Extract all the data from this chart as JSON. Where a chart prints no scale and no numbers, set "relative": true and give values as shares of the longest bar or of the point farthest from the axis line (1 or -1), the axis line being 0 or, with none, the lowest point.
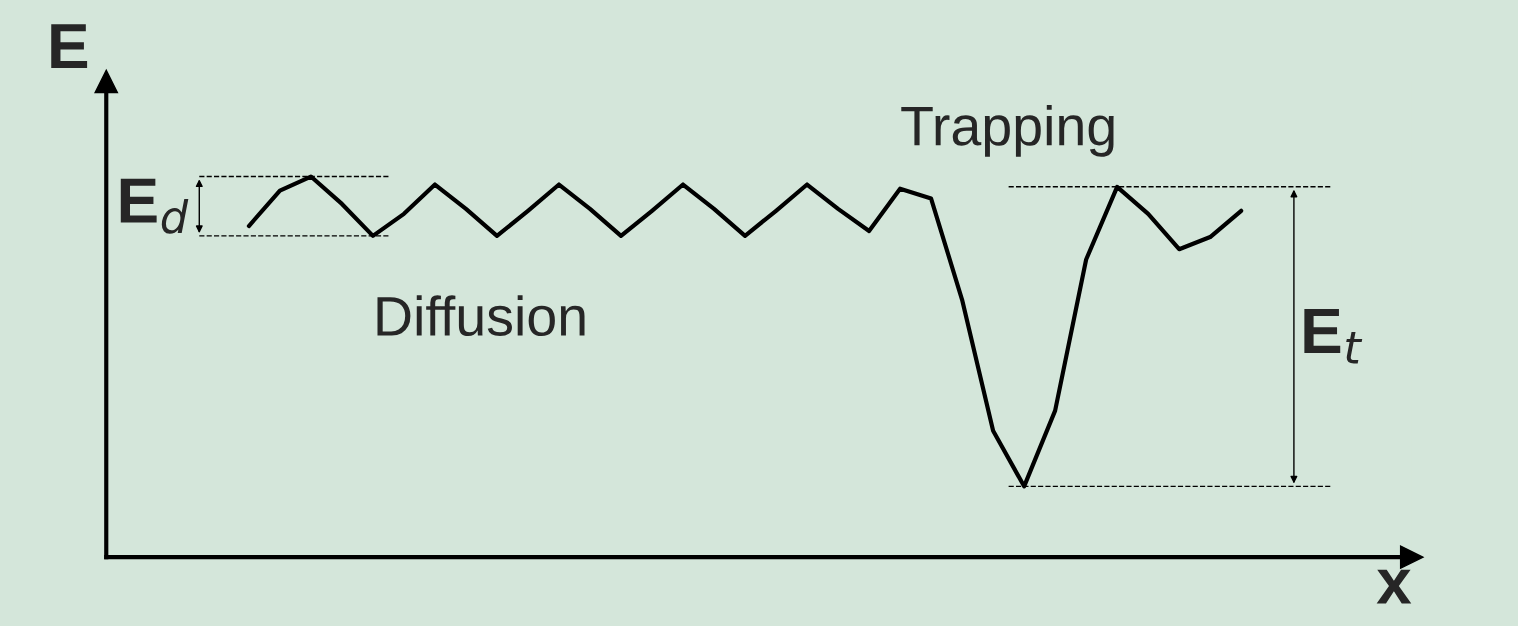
{
  "chart_data": {
    "type": "line",
    "relative": true,
    "xlabel": "x",
    "ylabel": "E",
    "categories": [
      null,
      null,
      null,
      null,
      null,
      null,
      null,
      null,
      null,
      null,
      null,
      null,
      null,
      null,
      null,
      null,
      null,
      null,
      null,
      null,
      null,
      null,
      null,
      null,
      null,
      null,
      null,
      null,
      null,
      null,
      null,
      null,
      null
    ],
    "series": [
      {
        "color": "#000000",
        "values": [
          0.87,
          0.963,
          1.0,
          0.928,
          0.844,
          0.902,
          0.979,
          0.915,
          0.844,
          0.91,
          0.979,
          0.915,
          0.844,
          0.91,
          0.979,
          0.915,
          0.844,
          0.91,
          0.979,
          0.915,
          0.857,
          0.968,
          0.942,
          0.676,
          0.332,
          0.186,
          0.385,
          0.782,
          0.973,
          0.902,
          0.809,
          0.841,
          0.91
        ]
      }
    ],
    "ref_lines": [
      {
        "axis": "y",
        "value": 1.0,
        "line_style": "dashed"
      },
      {
        "axis": "y",
        "value": 0.844,
        "label": "E$_{d}$",
        "line_style": "dashed"
      },
      {
        "axis": "y",
        "value": 0.973,
        "line_style": "dashed"
      },
      {
        "axis": "y",
        "value": 0.186,
        "label": "E$_{t}$",
        "line_style": "dashed"
      }
    ],
    "annotations": [
      "Diffusion",
      "Trapping"
    ],
    "legend": false,
    "marker": "none",
    "line_style": "solid"
  }
}
